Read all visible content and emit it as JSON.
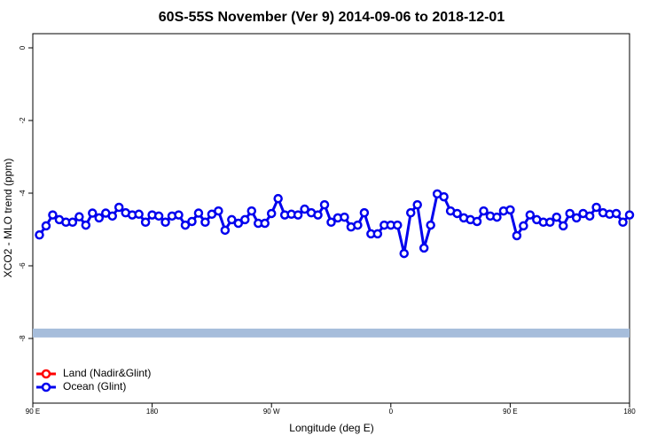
{
  "chart_data": {
    "type": "line",
    "title": "60S-55S November (Ver 9)   2014-09-06 to 2018-12-01",
    "x_label": "Longitude (deg E)",
    "y_label": "XCO2 - MLO trend (ppm)",
    "xlim": [
      90,
      540
    ],
    "ylim": [
      -9.78,
      0.39
    ],
    "xticks": [
      {
        "value": 90,
        "label": "90 E"
      },
      180,
      {
        "value": 270,
        "label": "90 W"
      },
      {
        "value": 360,
        "label": "0"
      },
      {
        "value": 450,
        "label": "90 E"
      },
      {
        "value": 540,
        "label": "180"
      }
    ],
    "yticks": [
      0,
      -2,
      -4,
      -6,
      -8
    ],
    "reference_band": {
      "value": -7.85,
      "color": "#a6bddb"
    },
    "legend": "bottom-left",
    "x": [
      95,
      100,
      105,
      110,
      115,
      120,
      125,
      130,
      135,
      140,
      145,
      150,
      155,
      160,
      165,
      170,
      175,
      180,
      185,
      190,
      195,
      200,
      205,
      210,
      215,
      220,
      225,
      230,
      235,
      240,
      245,
      250,
      255,
      260,
      265,
      270,
      275,
      280,
      285,
      290,
      295,
      300,
      305,
      310,
      315,
      320,
      325,
      330,
      335,
      340,
      345,
      350,
      355,
      360,
      365,
      370,
      375,
      380,
      385,
      390,
      395,
      400,
      405,
      410,
      415,
      420,
      425,
      430,
      435,
      440,
      445,
      450,
      455,
      460,
      465,
      470,
      475,
      480,
      485,
      490,
      495,
      500,
      505,
      510,
      515,
      520,
      525,
      530,
      535,
      540
    ],
    "series": [
      {
        "name": "Land (Nadir&Glint)",
        "color": "#ff0000",
        "values": [
          null,
          null,
          null,
          null,
          null,
          null,
          null,
          null,
          null,
          null,
          null,
          null,
          null,
          null,
          null,
          null,
          null,
          null,
          null,
          null,
          null,
          null,
          null,
          null,
          null,
          null,
          null,
          null,
          null,
          null,
          null,
          null,
          null,
          null,
          null,
          null,
          null,
          null,
          null,
          null,
          null,
          null,
          null,
          null,
          null,
          null,
          null,
          null,
          null,
          null,
          null,
          null,
          null,
          null,
          null,
          null,
          null,
          null,
          null,
          null,
          null,
          null,
          null,
          null,
          null,
          null,
          null,
          null,
          null,
          null,
          null,
          null,
          null,
          null,
          null,
          null,
          null,
          null,
          null,
          null,
          null,
          null,
          null,
          null,
          null,
          null,
          null,
          null,
          null,
          null
        ]
      },
      {
        "name": "Ocean (Glint)",
        "color": "#0000ee",
        "values": [
          -5.15,
          -4.9,
          -4.6,
          -4.73,
          -4.8,
          -4.8,
          -4.65,
          -4.88,
          -4.55,
          -4.68,
          -4.55,
          -4.63,
          -4.39,
          -4.54,
          -4.6,
          -4.58,
          -4.8,
          -4.6,
          -4.63,
          -4.8,
          -4.63,
          -4.6,
          -4.88,
          -4.78,
          -4.55,
          -4.8,
          -4.58,
          -4.49,
          -5.02,
          -4.73,
          -4.83,
          -4.73,
          -4.49,
          -4.83,
          -4.83,
          -4.56,
          -4.15,
          -4.6,
          -4.58,
          -4.6,
          -4.44,
          -4.54,
          -4.6,
          -4.32,
          -4.8,
          -4.68,
          -4.66,
          -4.93,
          -4.88,
          -4.54,
          -5.12,
          -5.12,
          -4.88,
          -4.88,
          -4.88,
          -5.66,
          -4.54,
          -4.32,
          -5.51,
          -4.88,
          -4.02,
          -4.1,
          -4.49,
          -4.56,
          -4.68,
          -4.73,
          -4.78,
          -4.49,
          -4.63,
          -4.66,
          -4.49,
          -4.46,
          -5.17,
          -4.9,
          -4.6,
          -4.73,
          -4.8,
          -4.8,
          -4.66,
          -4.9,
          -4.56,
          -4.68,
          -4.56,
          -4.63,
          -4.39,
          -4.54,
          -4.58,
          -4.56,
          -4.8,
          -4.6
        ]
      }
    ]
  }
}
